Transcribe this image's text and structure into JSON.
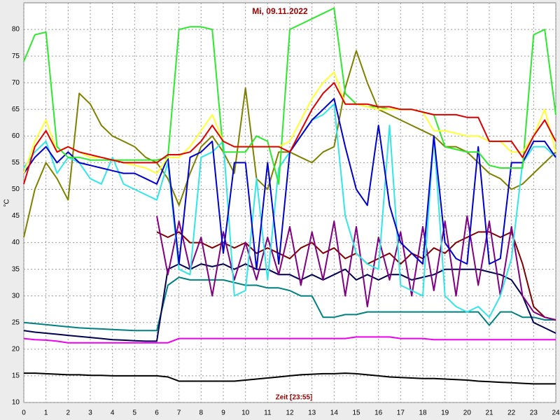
{
  "chart_data": {
    "type": "line",
    "title": "Mi, 09.11.2022",
    "x_label": "Zeit [23:55]",
    "y_label": "°C",
    "xlim": [
      0,
      24
    ],
    "xticks": [
      0,
      1,
      2,
      3,
      4,
      5,
      6,
      7,
      8,
      9,
      10,
      11,
      12,
      13,
      14,
      15,
      16,
      17,
      18,
      19,
      20,
      21,
      22,
      23,
      24
    ],
    "ylim": [
      10,
      85
    ],
    "yticks": [
      10,
      15,
      20,
      25,
      30,
      35,
      40,
      45,
      50,
      55,
      60,
      65,
      70,
      75,
      80
    ],
    "grid": true,
    "x": [
      0,
      0.5,
      1,
      1.5,
      2,
      2.5,
      3,
      3.5,
      4,
      4.5,
      5,
      5.5,
      6,
      6.5,
      7,
      7.5,
      8,
      8.5,
      9,
      9.5,
      10,
      10.5,
      11,
      11.5,
      12,
      12.5,
      13,
      13.5,
      14,
      14.5,
      15,
      15.5,
      16,
      16.5,
      17,
      17.5,
      18,
      18.5,
      19,
      19.5,
      20,
      20.5,
      21,
      21.5,
      22,
      22.5,
      23,
      23.5,
      24
    ],
    "series": [
      {
        "color": "#000000",
        "values": [
          15.5,
          15.5,
          15.4,
          15.3,
          15.2,
          15.2,
          15.1,
          15.1,
          15,
          15,
          15,
          15,
          15,
          14.8,
          14,
          14,
          14,
          14,
          14,
          14,
          14.2,
          14.4,
          14.6,
          14.8,
          15,
          15.2,
          15.3,
          15.4,
          15.4,
          15.5,
          15.4,
          15.2,
          15,
          14.8,
          14.7,
          14.6,
          14.5,
          14.5,
          14.4,
          14.3,
          14.2,
          14,
          13.9,
          13.8,
          13.7,
          13.6,
          13.5,
          13.5,
          13.5
        ]
      },
      {
        "color": "#ee00ee",
        "values": [
          22,
          21.8,
          21.7,
          21.5,
          21.2,
          21.2,
          21.2,
          21.2,
          21.2,
          21.2,
          21.2,
          21.2,
          21.2,
          21.2,
          22,
          22,
          22,
          22,
          22,
          22,
          22,
          22,
          22,
          22,
          22,
          22,
          22,
          22,
          22,
          22,
          22.3,
          22.3,
          22.3,
          22.3,
          22,
          22,
          22,
          21.8,
          21.8,
          21.8,
          21.8,
          21.8,
          21.8,
          21.8,
          21.8,
          21.8,
          21.8,
          21.8,
          21.8
        ]
      },
      {
        "color": "#008080",
        "values": [
          25,
          24.8,
          24.6,
          24.4,
          24.2,
          24,
          23.9,
          23.8,
          23.7,
          23.6,
          23.5,
          23.5,
          23.5,
          32,
          33.5,
          33,
          33,
          33,
          33,
          32.5,
          32,
          32,
          31.5,
          31.5,
          31,
          30,
          30,
          26,
          26,
          26.5,
          26.5,
          27,
          27,
          27,
          27,
          27,
          27,
          27,
          27,
          27,
          27,
          27,
          24.5,
          27,
          27,
          26,
          26,
          25.5,
          25.5
        ]
      },
      {
        "color": "#000050",
        "values": [
          23.5,
          23.2,
          23,
          22.8,
          22.6,
          22.4,
          22.2,
          22,
          21.8,
          21.7,
          21.6,
          21.5,
          21.5,
          35,
          36,
          35,
          36,
          35.5,
          36,
          35,
          36,
          35,
          35,
          34,
          34,
          33,
          34,
          33,
          34,
          35,
          33,
          34,
          33,
          34,
          34,
          33,
          33.5,
          34,
          35,
          35,
          35,
          35,
          34.5,
          34,
          33,
          30,
          25,
          24,
          23
        ]
      },
      {
        "color": "#800000",
        "values": [
          null,
          null,
          null,
          null,
          null,
          null,
          null,
          null,
          null,
          null,
          null,
          null,
          42,
          41,
          42,
          40,
          40,
          39,
          40,
          39,
          40,
          38,
          39,
          38,
          37,
          39,
          40,
          38,
          39,
          37,
          38,
          36,
          37,
          38,
          36,
          38,
          37,
          39,
          38,
          40,
          41,
          42,
          42,
          41,
          42,
          36,
          28,
          26,
          25.5
        ]
      },
      {
        "color": "#800080",
        "values": [
          null,
          null,
          null,
          null,
          null,
          null,
          null,
          null,
          null,
          null,
          null,
          null,
          45,
          34,
          44,
          35,
          41,
          30,
          42,
          33,
          40,
          33,
          41,
          34,
          43,
          32,
          42,
          33,
          44,
          30,
          43,
          28,
          41,
          33,
          42,
          30,
          43,
          31,
          44,
          30,
          45,
          32,
          44,
          30,
          43,
          30,
          27,
          26,
          25.5
        ]
      },
      {
        "color": "#808000",
        "values": [
          41,
          50,
          55,
          52,
          48,
          68,
          66,
          62,
          60,
          59,
          58,
          56,
          55,
          52,
          47,
          53,
          58,
          60,
          57,
          53,
          69,
          52,
          50,
          57,
          57,
          56,
          55,
          57,
          58,
          69,
          76,
          70,
          65,
          64,
          63,
          62,
          61,
          60,
          58,
          58,
          57,
          55,
          53,
          52,
          50,
          51,
          53,
          55,
          57
        ]
      },
      {
        "color": "#33e6e6",
        "values": [
          54,
          57,
          59,
          53,
          56,
          55,
          52,
          51,
          56,
          51,
          50,
          49,
          48,
          55,
          35,
          34,
          56,
          57,
          59,
          30,
          31,
          52,
          33,
          54,
          57,
          60,
          63,
          64,
          66,
          45,
          38,
          36,
          35,
          62,
          32,
          31,
          30,
          60,
          30,
          28,
          27,
          28,
          26,
          30,
          37,
          55,
          58,
          58,
          56
        ]
      },
      {
        "color": "#0000cc",
        "values": [
          53,
          56,
          58,
          55,
          57,
          55,
          54.5,
          54,
          53.5,
          53,
          53,
          52,
          51,
          56,
          36,
          56,
          57,
          59,
          38,
          55,
          55,
          35,
          55,
          36,
          57,
          60,
          63,
          65,
          67,
          58,
          50,
          47,
          62,
          47,
          40,
          38,
          36,
          60,
          40,
          37,
          36,
          58,
          36,
          37,
          55,
          55,
          59,
          59,
          56
        ]
      },
      {
        "color": "#2ee82e",
        "values": [
          74,
          79,
          79.5,
          58,
          56,
          56,
          55.5,
          55.5,
          55.5,
          55.5,
          55.5,
          55.5,
          55.5,
          56,
          80,
          80.5,
          80.5,
          80,
          57,
          57,
          57,
          60,
          59,
          51,
          80,
          81,
          82,
          83,
          84,
          68,
          66,
          65.5,
          65.5,
          65,
          65,
          65,
          64.5,
          64,
          58,
          57.5,
          57,
          57,
          54.5,
          54,
          54,
          54,
          79,
          80,
          64
        ]
      },
      {
        "color": "#ffff33",
        "values": [
          53,
          59,
          63,
          57,
          58,
          57,
          56,
          56,
          55.5,
          55,
          54.5,
          54,
          53,
          56,
          56,
          58,
          61,
          64,
          59,
          58,
          58,
          58,
          58,
          58,
          59,
          63,
          67,
          70,
          72,
          66,
          66,
          65.5,
          65,
          65,
          65,
          65,
          64.5,
          61,
          61,
          60.5,
          60,
          60,
          59,
          59,
          57,
          57,
          60,
          65,
          57
        ]
      },
      {
        "color": "#dd0000",
        "values": [
          51,
          58,
          61,
          57,
          58,
          57,
          56.5,
          56,
          55.5,
          55,
          55,
          55,
          55,
          56.5,
          56.5,
          57,
          59,
          62,
          59,
          58,
          58,
          58,
          58,
          58,
          57,
          61,
          65,
          68,
          70,
          66,
          66,
          66,
          65.5,
          65.5,
          65,
          65,
          64.5,
          64,
          64,
          64,
          63.5,
          63.5,
          59,
          59,
          59,
          56,
          60,
          63,
          59
        ]
      }
    ]
  }
}
